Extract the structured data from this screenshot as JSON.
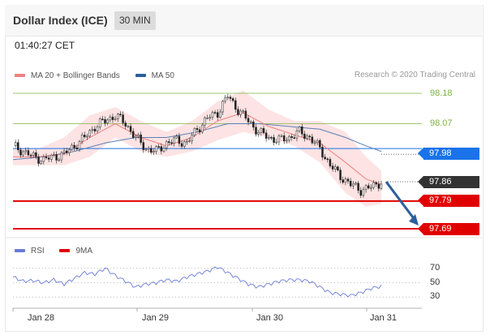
{
  "header": {
    "title": "Dollar Index (ICE)",
    "interval": "30 MIN"
  },
  "timestamp": "01:40:27 CET",
  "legend": {
    "ma20_label": "MA 20 + Bollinger Bands",
    "ma50_label": "MA 50",
    "rsi_label": "RSI",
    "ma9_label": "9MA"
  },
  "credit": "Research © 2020 Trading Central",
  "colors": {
    "ma20": "#f08080",
    "ma50": "#2b5f9b",
    "bollinger_fill": "#fde3e3",
    "resistance": "#7cb342",
    "support": "#e00000",
    "pivot": "#1a73e8",
    "last_price": "#333333",
    "rsi": "#6a7bd6",
    "forecast_arrow": "#2b5f9b"
  },
  "chart_data": [
    {
      "type": "candlestick",
      "x_ticks": [
        "Jan 28",
        "Jan 29",
        "Jan 30",
        "Jan 31"
      ],
      "ylim": [
        97.69,
        98.18
      ],
      "levels": [
        {
          "name": "resistance_2",
          "value": 98.18,
          "label": "98.18",
          "kind": "resistance"
        },
        {
          "name": "resistance_1",
          "value": 98.07,
          "label": "98.07",
          "kind": "resistance"
        },
        {
          "name": "pivot",
          "value": 97.98,
          "label": "97.98",
          "kind": "pivot"
        },
        {
          "name": "last",
          "value": 97.86,
          "label": "97.86",
          "kind": "last"
        },
        {
          "name": "support_1",
          "value": 97.79,
          "label": "97.79",
          "kind": "support"
        },
        {
          "name": "support_2",
          "value": 97.69,
          "label": "97.69",
          "kind": "support"
        }
      ],
      "close_path": [
        [
          0,
          97.99
        ],
        [
          4,
          97.97
        ],
        [
          8,
          97.95
        ],
        [
          12,
          97.94
        ],
        [
          16,
          97.95
        ],
        [
          20,
          97.96
        ],
        [
          24,
          97.99
        ],
        [
          28,
          98.02
        ],
        [
          32,
          98.06
        ],
        [
          36,
          98.08
        ],
        [
          40,
          98.1
        ],
        [
          44,
          98.07
        ],
        [
          48,
          98.02
        ],
        [
          52,
          97.98
        ],
        [
          56,
          97.97
        ],
        [
          60,
          98.0
        ],
        [
          64,
          98.01
        ],
        [
          68,
          98.0
        ],
        [
          72,
          98.05
        ],
        [
          76,
          98.09
        ],
        [
          80,
          98.11
        ],
        [
          84,
          98.17
        ],
        [
          88,
          98.12
        ],
        [
          92,
          98.08
        ],
        [
          96,
          98.04
        ],
        [
          100,
          98.02
        ],
        [
          104,
          98.01
        ],
        [
          108,
          98.02
        ],
        [
          112,
          98.04
        ],
        [
          116,
          98.02
        ],
        [
          120,
          97.98
        ],
        [
          124,
          97.92
        ],
        [
          128,
          97.88
        ],
        [
          132,
          97.85
        ],
        [
          136,
          97.83
        ],
        [
          140,
          97.84
        ],
        [
          144,
          97.86
        ]
      ],
      "ma20_path": [
        [
          0,
          97.95
        ],
        [
          10,
          97.95
        ],
        [
          20,
          97.96
        ],
        [
          30,
          98.02
        ],
        [
          40,
          98.07
        ],
        [
          50,
          98.02
        ],
        [
          60,
          97.99
        ],
        [
          70,
          98.02
        ],
        [
          80,
          98.08
        ],
        [
          90,
          98.11
        ],
        [
          100,
          98.06
        ],
        [
          110,
          98.03
        ],
        [
          120,
          98.0
        ],
        [
          130,
          97.93
        ],
        [
          138,
          97.87
        ],
        [
          144,
          97.85
        ]
      ],
      "ma50_path": [
        [
          0,
          97.94
        ],
        [
          12,
          97.95
        ],
        [
          24,
          97.97
        ],
        [
          36,
          98.0
        ],
        [
          48,
          98.02
        ],
        [
          60,
          98.02
        ],
        [
          72,
          98.04
        ],
        [
          84,
          98.07
        ],
        [
          96,
          98.07
        ],
        [
          108,
          98.06
        ],
        [
          120,
          98.05
        ],
        [
          130,
          98.02
        ],
        [
          138,
          97.99
        ],
        [
          144,
          97.97
        ]
      ],
      "bollinger_upper": [
        [
          0,
          97.98
        ],
        [
          10,
          97.98
        ],
        [
          20,
          98.02
        ],
        [
          30,
          98.1
        ],
        [
          40,
          98.13
        ],
        [
          50,
          98.08
        ],
        [
          60,
          98.04
        ],
        [
          70,
          98.08
        ],
        [
          80,
          98.15
        ],
        [
          90,
          98.19
        ],
        [
          100,
          98.12
        ],
        [
          110,
          98.08
        ],
        [
          120,
          98.08
        ],
        [
          130,
          98.04
        ],
        [
          138,
          97.95
        ],
        [
          144,
          97.9
        ]
      ],
      "bollinger_lower": [
        [
          0,
          97.92
        ],
        [
          10,
          97.92
        ],
        [
          20,
          97.92
        ],
        [
          30,
          97.95
        ],
        [
          40,
          98.02
        ],
        [
          50,
          97.97
        ],
        [
          60,
          97.95
        ],
        [
          70,
          97.97
        ],
        [
          80,
          98.01
        ],
        [
          90,
          98.04
        ],
        [
          100,
          98.02
        ],
        [
          110,
          97.99
        ],
        [
          120,
          97.93
        ],
        [
          130,
          97.82
        ],
        [
          138,
          97.77
        ],
        [
          144,
          97.78
        ]
      ],
      "forecast": {
        "from": 97.86,
        "to": 97.69
      }
    },
    {
      "type": "line",
      "name": "RSI",
      "reference_levels": [
        70,
        50,
        30
      ],
      "ylim": [
        20,
        80
      ],
      "values": [
        [
          0,
          58
        ],
        [
          4,
          52
        ],
        [
          8,
          53
        ],
        [
          12,
          50
        ],
        [
          16,
          54
        ],
        [
          20,
          48
        ],
        [
          24,
          56
        ],
        [
          28,
          64
        ],
        [
          32,
          62
        ],
        [
          36,
          70
        ],
        [
          40,
          60
        ],
        [
          44,
          52
        ],
        [
          48,
          44
        ],
        [
          52,
          48
        ],
        [
          56,
          50
        ],
        [
          60,
          54
        ],
        [
          64,
          52
        ],
        [
          68,
          58
        ],
        [
          72,
          62
        ],
        [
          76,
          66
        ],
        [
          80,
          72
        ],
        [
          84,
          64
        ],
        [
          88,
          56
        ],
        [
          92,
          48
        ],
        [
          96,
          44
        ],
        [
          100,
          48
        ],
        [
          104,
          52
        ],
        [
          108,
          54
        ],
        [
          112,
          54
        ],
        [
          116,
          52
        ],
        [
          120,
          44
        ],
        [
          124,
          36
        ],
        [
          128,
          34
        ],
        [
          132,
          32
        ],
        [
          136,
          36
        ],
        [
          140,
          42
        ],
        [
          144,
          45
        ]
      ]
    }
  ]
}
